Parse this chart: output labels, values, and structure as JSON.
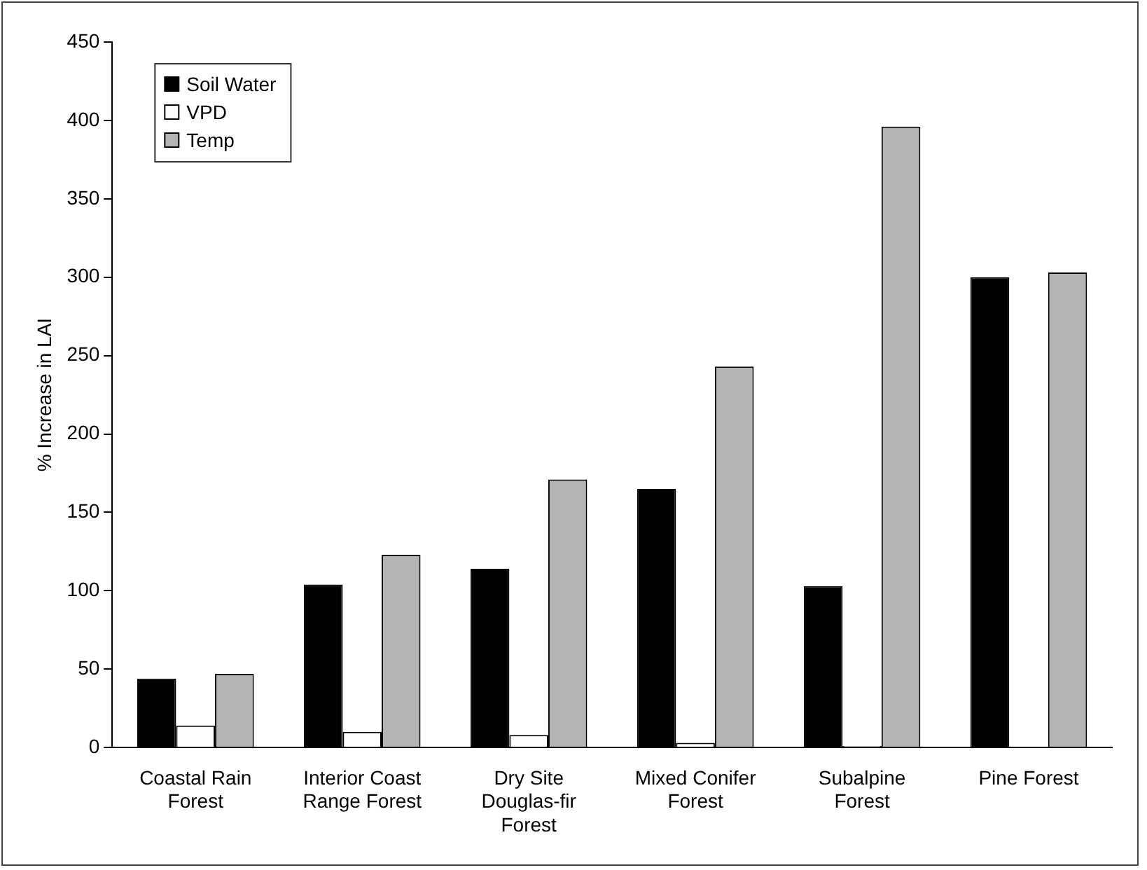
{
  "chart_data": {
    "type": "bar",
    "ylabel": "% Increase in LAI",
    "categories": [
      "Coastal Rain Forest",
      "Interior Coast Range Forest",
      "Dry Site Douglas-fir Forest",
      "Mixed Conifer Forest",
      "Subalpine Forest",
      "Pine Forest"
    ],
    "series": [
      {
        "name": "Soil Water",
        "color": "#000000",
        "values": [
          44,
          104,
          114,
          165,
          103,
          300
        ]
      },
      {
        "name": "VPD",
        "color": "#fdfdfd",
        "values": [
          14,
          10,
          8,
          3,
          1,
          0
        ]
      },
      {
        "name": "Temp",
        "color": "#b4b4b4",
        "values": [
          47,
          123,
          171,
          243,
          396,
          303
        ]
      }
    ],
    "ylim": [
      0,
      450
    ],
    "yticks": [
      0,
      50,
      100,
      150,
      200,
      250,
      300,
      350,
      400,
      450
    ],
    "grid": false,
    "legend": "top left"
  }
}
